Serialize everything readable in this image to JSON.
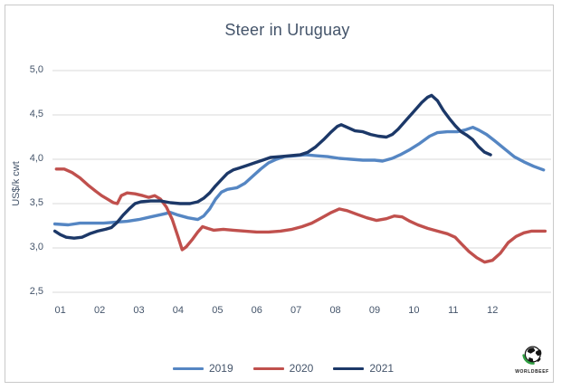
{
  "chart_data": {
    "type": "line",
    "title": "Steer in Uruguay",
    "ylabel": "US$/k cwt",
    "y_range": [
      2.5,
      5.0
    ],
    "x_range_months": [
      0.8,
      13.4
    ],
    "grid": true,
    "legend_position": "bottom",
    "colors": {
      "grid": "#d9d9d9",
      "text": "#44546a",
      "frame": "#c9c9c9"
    },
    "yticks": [
      {
        "label": "5,0",
        "value": 5.0
      },
      {
        "label": "4,5",
        "value": 4.5
      },
      {
        "label": "4,0",
        "value": 4.0
      },
      {
        "label": "3,5",
        "value": 3.5
      },
      {
        "label": "3,0",
        "value": 3.0
      },
      {
        "label": "2,5",
        "value": 2.5
      }
    ],
    "xticks": [
      {
        "label": "01",
        "value": 1
      },
      {
        "label": "02",
        "value": 2
      },
      {
        "label": "03",
        "value": 3
      },
      {
        "label": "04",
        "value": 4
      },
      {
        "label": "05",
        "value": 5
      },
      {
        "label": "06",
        "value": 6
      },
      {
        "label": "07",
        "value": 7
      },
      {
        "label": "08",
        "value": 8
      },
      {
        "label": "09",
        "value": 9
      },
      {
        "label": "10",
        "value": 10
      },
      {
        "label": "11",
        "value": 11
      },
      {
        "label": "12",
        "value": 12
      }
    ],
    "series": [
      {
        "name": "2019",
        "color": "#5586c3",
        "points": [
          [
            0.86,
            3.27
          ],
          [
            1.2,
            3.26
          ],
          [
            1.5,
            3.28
          ],
          [
            1.8,
            3.28
          ],
          [
            2.1,
            3.28
          ],
          [
            2.4,
            3.29
          ],
          [
            2.7,
            3.3
          ],
          [
            3.0,
            3.32
          ],
          [
            3.3,
            3.35
          ],
          [
            3.6,
            3.38
          ],
          [
            3.8,
            3.4
          ],
          [
            4.0,
            3.37
          ],
          [
            4.25,
            3.34
          ],
          [
            4.5,
            3.32
          ],
          [
            4.65,
            3.36
          ],
          [
            4.8,
            3.44
          ],
          [
            4.95,
            3.55
          ],
          [
            5.1,
            3.63
          ],
          [
            5.25,
            3.66
          ],
          [
            5.5,
            3.68
          ],
          [
            5.7,
            3.73
          ],
          [
            5.9,
            3.81
          ],
          [
            6.1,
            3.89
          ],
          [
            6.3,
            3.96
          ],
          [
            6.5,
            4.0
          ],
          [
            6.7,
            4.03
          ],
          [
            7.0,
            4.04
          ],
          [
            7.25,
            4.05
          ],
          [
            7.5,
            4.04
          ],
          [
            7.8,
            4.03
          ],
          [
            8.1,
            4.01
          ],
          [
            8.4,
            4.0
          ],
          [
            8.7,
            3.99
          ],
          [
            9.0,
            3.99
          ],
          [
            9.2,
            3.98
          ],
          [
            9.45,
            4.01
          ],
          [
            9.65,
            4.05
          ],
          [
            9.9,
            4.11
          ],
          [
            10.15,
            4.18
          ],
          [
            10.4,
            4.26
          ],
          [
            10.6,
            4.3
          ],
          [
            10.85,
            4.31
          ],
          [
            11.1,
            4.31
          ],
          [
            11.3,
            4.33
          ],
          [
            11.5,
            4.36
          ],
          [
            11.65,
            4.33
          ],
          [
            11.85,
            4.28
          ],
          [
            12.05,
            4.21
          ],
          [
            12.3,
            4.12
          ],
          [
            12.55,
            4.03
          ],
          [
            12.8,
            3.97
          ],
          [
            13.05,
            3.92
          ],
          [
            13.3,
            3.88
          ]
        ]
      },
      {
        "name": "2020",
        "color": "#c0504d",
        "points": [
          [
            0.9,
            3.89
          ],
          [
            1.1,
            3.89
          ],
          [
            1.3,
            3.85
          ],
          [
            1.5,
            3.79
          ],
          [
            1.7,
            3.71
          ],
          [
            1.9,
            3.64
          ],
          [
            2.05,
            3.59
          ],
          [
            2.2,
            3.55
          ],
          [
            2.35,
            3.51
          ],
          [
            2.45,
            3.5
          ],
          [
            2.55,
            3.59
          ],
          [
            2.7,
            3.62
          ],
          [
            2.9,
            3.61
          ],
          [
            3.1,
            3.59
          ],
          [
            3.25,
            3.57
          ],
          [
            3.4,
            3.59
          ],
          [
            3.55,
            3.55
          ],
          [
            3.7,
            3.46
          ],
          [
            3.85,
            3.32
          ],
          [
            4.0,
            3.12
          ],
          [
            4.1,
            2.98
          ],
          [
            4.2,
            3.01
          ],
          [
            4.35,
            3.09
          ],
          [
            4.5,
            3.18
          ],
          [
            4.62,
            3.24
          ],
          [
            4.75,
            3.22
          ],
          [
            4.9,
            3.2
          ],
          [
            5.15,
            3.21
          ],
          [
            5.4,
            3.2
          ],
          [
            5.7,
            3.19
          ],
          [
            6.0,
            3.18
          ],
          [
            6.3,
            3.18
          ],
          [
            6.6,
            3.19
          ],
          [
            6.9,
            3.21
          ],
          [
            7.15,
            3.24
          ],
          [
            7.4,
            3.28
          ],
          [
            7.65,
            3.34
          ],
          [
            7.9,
            3.4
          ],
          [
            8.1,
            3.44
          ],
          [
            8.3,
            3.42
          ],
          [
            8.55,
            3.38
          ],
          [
            8.8,
            3.34
          ],
          [
            9.05,
            3.31
          ],
          [
            9.3,
            3.33
          ],
          [
            9.5,
            3.36
          ],
          [
            9.7,
            3.35
          ],
          [
            9.9,
            3.3
          ],
          [
            10.1,
            3.26
          ],
          [
            10.35,
            3.22
          ],
          [
            10.6,
            3.19
          ],
          [
            10.85,
            3.16
          ],
          [
            11.05,
            3.12
          ],
          [
            11.2,
            3.05
          ],
          [
            11.4,
            2.96
          ],
          [
            11.6,
            2.89
          ],
          [
            11.8,
            2.84
          ],
          [
            12.0,
            2.86
          ],
          [
            12.2,
            2.94
          ],
          [
            12.4,
            3.06
          ],
          [
            12.6,
            3.13
          ],
          [
            12.8,
            3.17
          ],
          [
            13.0,
            3.19
          ],
          [
            13.34,
            3.19
          ]
        ]
      },
      {
        "name": "2021",
        "color": "#1c3868",
        "points": [
          [
            0.86,
            3.19
          ],
          [
            1.0,
            3.15
          ],
          [
            1.15,
            3.12
          ],
          [
            1.35,
            3.11
          ],
          [
            1.55,
            3.12
          ],
          [
            1.75,
            3.16
          ],
          [
            1.95,
            3.19
          ],
          [
            2.15,
            3.21
          ],
          [
            2.3,
            3.23
          ],
          [
            2.45,
            3.29
          ],
          [
            2.6,
            3.37
          ],
          [
            2.75,
            3.44
          ],
          [
            2.9,
            3.5
          ],
          [
            3.05,
            3.52
          ],
          [
            3.3,
            3.53
          ],
          [
            3.55,
            3.53
          ],
          [
            3.8,
            3.51
          ],
          [
            4.05,
            3.5
          ],
          [
            4.3,
            3.5
          ],
          [
            4.5,
            3.52
          ],
          [
            4.65,
            3.56
          ],
          [
            4.8,
            3.62
          ],
          [
            4.95,
            3.7
          ],
          [
            5.1,
            3.77
          ],
          [
            5.25,
            3.84
          ],
          [
            5.4,
            3.88
          ],
          [
            5.55,
            3.9
          ],
          [
            5.75,
            3.93
          ],
          [
            5.95,
            3.96
          ],
          [
            6.15,
            3.99
          ],
          [
            6.35,
            4.02
          ],
          [
            6.6,
            4.03
          ],
          [
            6.85,
            4.04
          ],
          [
            7.1,
            4.05
          ],
          [
            7.3,
            4.08
          ],
          [
            7.5,
            4.14
          ],
          [
            7.7,
            4.22
          ],
          [
            7.9,
            4.31
          ],
          [
            8.05,
            4.37
          ],
          [
            8.15,
            4.39
          ],
          [
            8.3,
            4.36
          ],
          [
            8.5,
            4.32
          ],
          [
            8.7,
            4.31
          ],
          [
            8.9,
            4.28
          ],
          [
            9.1,
            4.26
          ],
          [
            9.3,
            4.25
          ],
          [
            9.45,
            4.28
          ],
          [
            9.6,
            4.34
          ],
          [
            9.8,
            4.44
          ],
          [
            10.0,
            4.54
          ],
          [
            10.2,
            4.64
          ],
          [
            10.35,
            4.7
          ],
          [
            10.45,
            4.72
          ],
          [
            10.6,
            4.66
          ],
          [
            10.75,
            4.55
          ],
          [
            10.9,
            4.46
          ],
          [
            11.05,
            4.38
          ],
          [
            11.2,
            4.31
          ],
          [
            11.35,
            4.27
          ],
          [
            11.5,
            4.22
          ],
          [
            11.65,
            4.14
          ],
          [
            11.8,
            4.08
          ],
          [
            11.95,
            4.05
          ]
        ]
      }
    ]
  },
  "logo": {
    "label": "WORLDBEEF",
    "swoosh_color": "#2f9e41"
  }
}
